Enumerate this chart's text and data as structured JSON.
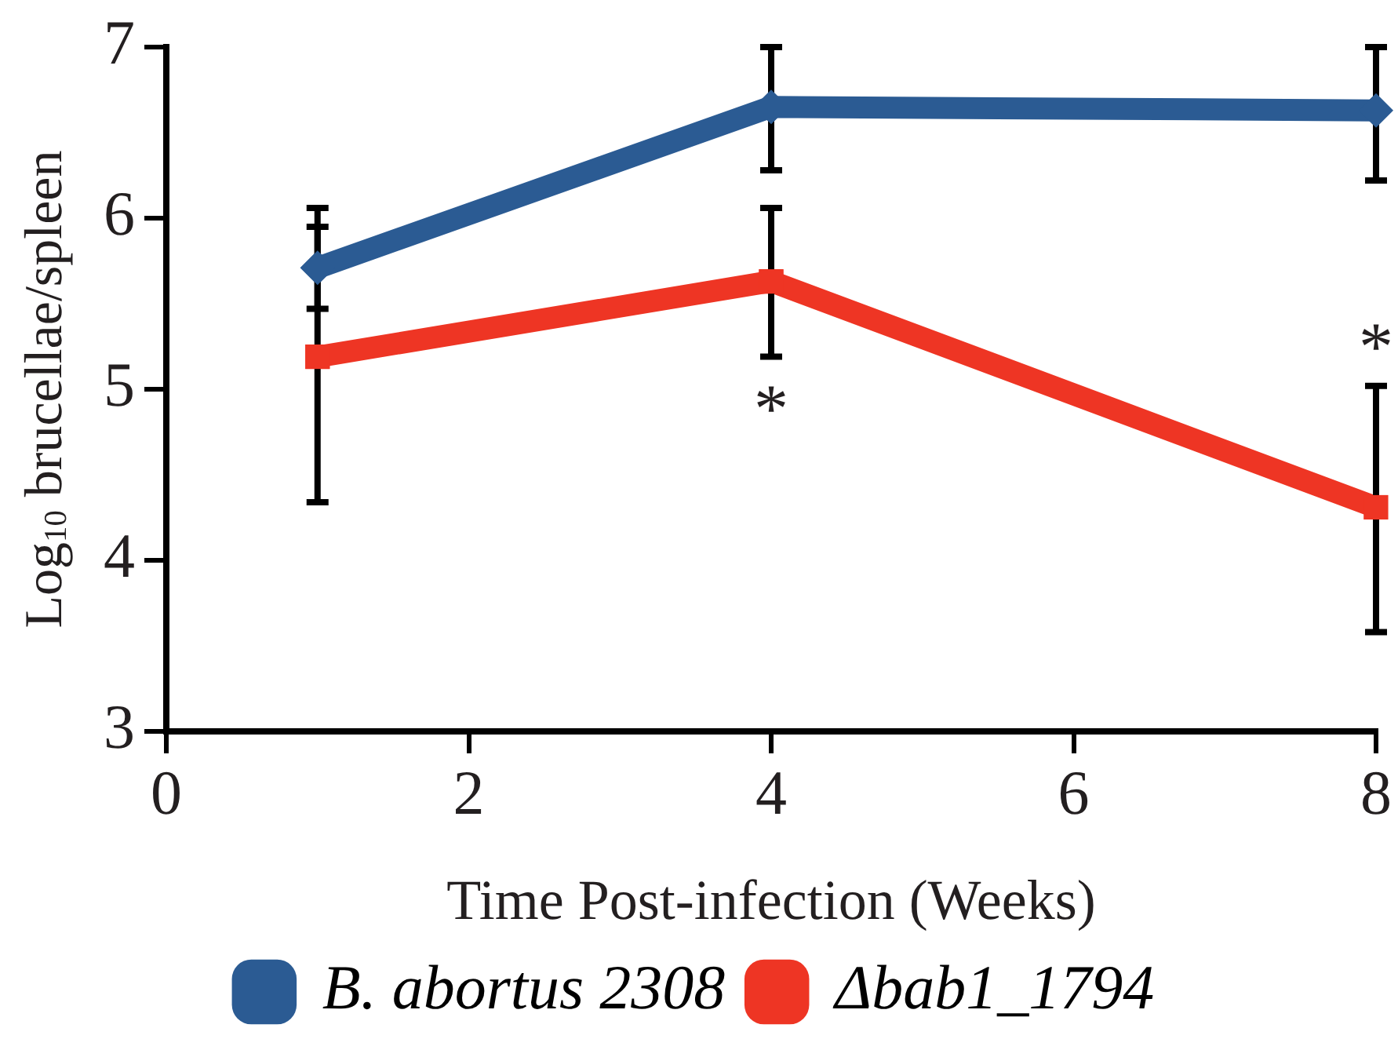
{
  "chart_data": {
    "type": "line",
    "xlabel": "Time Post-infection (Weeks)",
    "ylabel": "Log$_{10}$ brucellae/spleen",
    "x": [
      1,
      4,
      8
    ],
    "xlim": [
      0,
      8
    ],
    "xticks": [
      0,
      2,
      4,
      6,
      8
    ],
    "ylim": [
      3,
      7
    ],
    "yticks": [
      3,
      4,
      5,
      6,
      7
    ],
    "grid": false,
    "legend": "bottom",
    "series": [
      {
        "name": "B. abortus 2308",
        "color": "#2b5b93",
        "marker": "diamond",
        "values": [
          5.71,
          6.65,
          6.63
        ],
        "errors": [
          [
            5.47,
            5.95
          ],
          [
            6.28,
            7.0
          ],
          [
            6.22,
            7.0
          ]
        ]
      },
      {
        "name": "Δbab1_1794",
        "color": "#ee3524",
        "marker": "square",
        "values": [
          5.19,
          5.63,
          4.31
        ],
        "errors": [
          [
            4.34,
            6.06
          ],
          [
            5.19,
            6.06
          ],
          [
            3.58,
            5.02
          ]
        ]
      }
    ],
    "annotations": [
      {
        "text": "*",
        "x": 4,
        "y": 5.19
      },
      {
        "text": "*",
        "x": 8,
        "y": 5.02
      }
    ]
  }
}
